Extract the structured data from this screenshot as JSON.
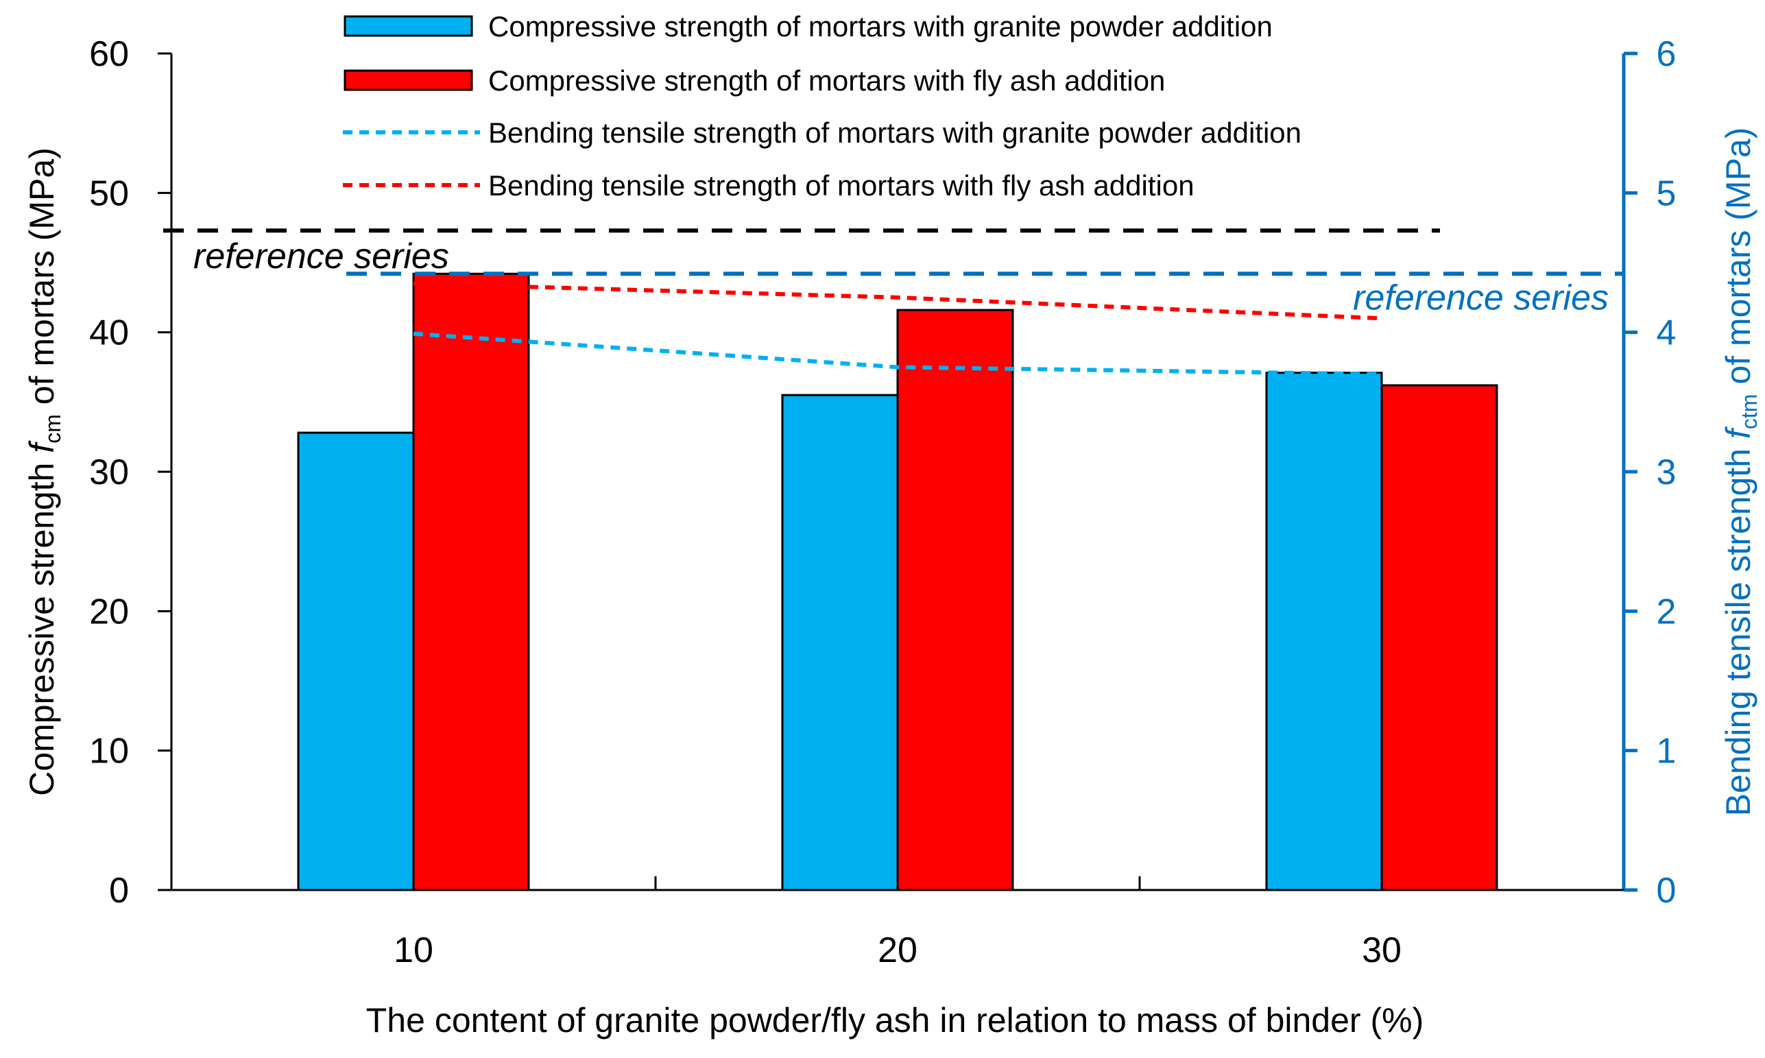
{
  "chart_data": {
    "type": "bar",
    "categories": [
      "10",
      "20",
      "30"
    ],
    "series": [
      {
        "name": "Compressive strength of mortars with granite powder addition",
        "kind": "bar",
        "axis": "left",
        "color": "#00B0F0",
        "values": [
          32.8,
          35.5,
          37.1
        ]
      },
      {
        "name": "Compressive strength of mortars with fly ash addition",
        "kind": "bar",
        "axis": "left",
        "color": "#FF0000",
        "values": [
          44.2,
          41.6,
          36.2
        ]
      },
      {
        "name": "Bending tensile strength of mortars with granite powder addition",
        "kind": "line",
        "axis": "right",
        "color": "#00B0F0",
        "values": [
          3.99,
          3.75,
          3.7
        ]
      },
      {
        "name": "Bending tensile strength of mortars with fly ash addition",
        "kind": "line",
        "axis": "right",
        "color": "#FF0000",
        "values": [
          4.35,
          4.25,
          4.1
        ]
      }
    ],
    "reference_lines": [
      {
        "label": "reference series",
        "axis": "left",
        "value": 47.3,
        "color": "#000000"
      },
      {
        "label": "reference series",
        "axis": "right",
        "value": 4.42,
        "color": "#0070C0"
      }
    ],
    "xlabel": "The content of granite powder/fly ash in relation to mass of binder (%)",
    "ylabel_left": {
      "prefix": "Compressive strength ",
      "symbol": "f",
      "subscript": "cm",
      "suffix": " of mortars (MPa)"
    },
    "ylabel_right": {
      "prefix": "Bending tensile strength ",
      "symbol": "f",
      "subscript": "ctm",
      "suffix": " of mortars (MPa)"
    },
    "ylim_left": [
      0,
      60
    ],
    "ylim_right": [
      0,
      6
    ],
    "yticks_left": [
      "0",
      "10",
      "20",
      "30",
      "40",
      "50",
      "60"
    ],
    "yticks_right": [
      "0",
      "1",
      "2",
      "3",
      "4",
      "5",
      "6"
    ],
    "legend_position": "top-center",
    "grid": false,
    "colors": {
      "left_axis": "#000000",
      "right_axis": "#0070C0",
      "granite": "#00B0F0",
      "fly_ash": "#FF0000"
    }
  }
}
